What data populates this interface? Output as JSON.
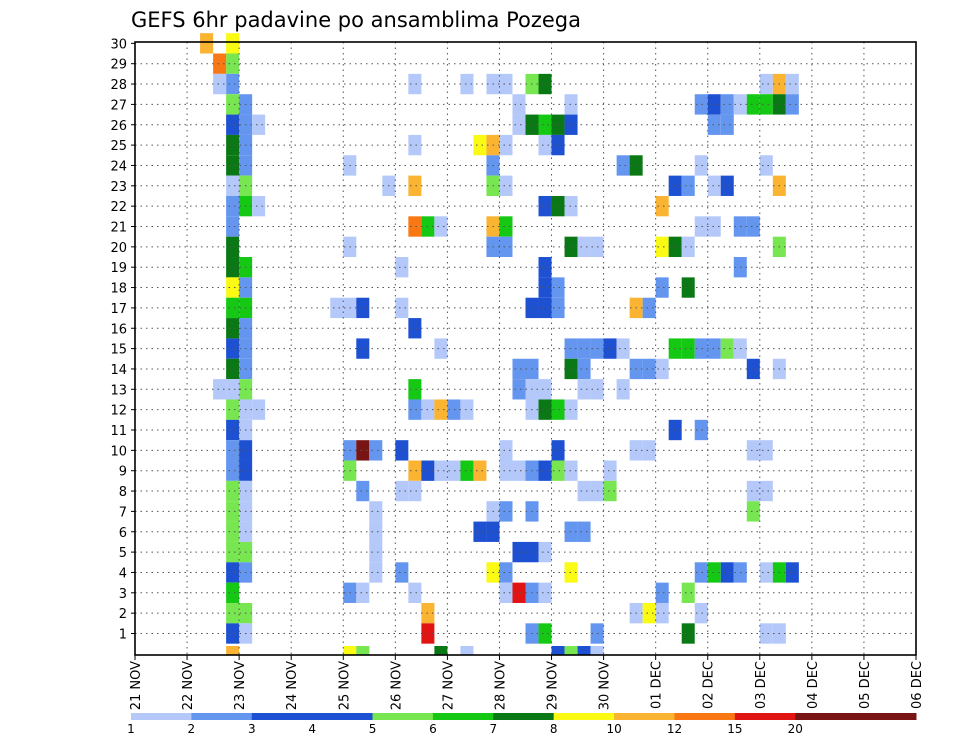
{
  "chart_data": {
    "type": "heatmap",
    "title": "GEFS 6hr padavine po ansamblima Pozega",
    "xlabel": "",
    "ylabel": "",
    "x_tick_labels": [
      "21 NOV",
      "22 NOV",
      "23 NOV",
      "24 NOV",
      "25 NOV",
      "26 NOV",
      "27 NOV",
      "28 NOV",
      "29 NOV",
      "30 NOV",
      "01 DEC",
      "02 DEC",
      "03 DEC",
      "04 DEC",
      "05 DEC",
      "06 DEC"
    ],
    "y_tick_labels": [
      "1",
      "2",
      "3",
      "4",
      "5",
      "6",
      "7",
      "8",
      "9",
      "10",
      "11",
      "12",
      "13",
      "14",
      "15",
      "16",
      "17",
      "18",
      "19",
      "20",
      "21",
      "22",
      "23",
      "24",
      "25",
      "26",
      "27",
      "28",
      "29",
      "30"
    ],
    "x_range_days": [
      0,
      15
    ],
    "y_range_members": [
      0,
      30
    ],
    "grid": "dotted",
    "colorbar": {
      "position": "bottom",
      "labels": [
        "1",
        "2",
        "3",
        "4",
        "5",
        "6",
        "7",
        "8",
        "10",
        "12",
        "15",
        "20"
      ],
      "colors": [
        "#b4c8fa",
        "#6496f0",
        "#1e50d2",
        "#1e50d2",
        "#78e650",
        "#14c814",
        "#0a7814",
        "#fafa14",
        "#fab432",
        "#fa7814",
        "#e11414",
        "#781414",
        "#781414"
      ]
    },
    "level_colors": {
      "1": "#b4c8fa",
      "2": "#6496f0",
      "3": "#1e50d2",
      "4": "#78e650",
      "5": "#14c814",
      "6": "#0a7814",
      "7": "#fafa14",
      "8": "#fab432",
      "9": "#fa7814",
      "10": "#e11414",
      "11": "#781414"
    },
    "cells": [
      [
        0,
        30,
        "7,7,1,1:5,8:1,31:1"
      ],
      [
        0,
        29,
        "7,4,7,2:6,9:3,21:2,25:1,27:4,28:2,29:2,30:4,32:1,43:5,44:3,45:1,48:1"
      ],
      [
        0,
        28,
        "7,2:6,1:21,1:25,1:27,1:28,1:30,4:31,6:48,1:49,8:50,1"
      ],
      [
        0,
        27,
        "7,4:8,2:29,1:33,1:43,2:44,3:45,2:46,1:47,5:48,5:49,6:50,2"
      ],
      [
        0,
        26,
        "7,3:8,2:9,1:29,1:30,6:31,5:32,6:33,3:44,2:45,2"
      ],
      [
        0,
        25,
        "7,6:8,2:21,1:26,7:27,8:28,1:31,1:32,3"
      ],
      [
        0,
        24,
        "7,6:8,2:16,1:27,2:37,2:38,6:43,1:48,1"
      ],
      [
        0,
        23,
        "7,1:8,4:19,1:21,8:27,4:28,1:41,3:42,2:44,1:45,3:49,8"
      ],
      [
        0,
        22,
        "7,2:8,5:9,1:31,3:32,6:33,1:40,8"
      ],
      [
        0,
        21,
        "7,2:21,9:22,5:23,1:27,8:28,5:43,1:44,1:46,2:47,2"
      ],
      [
        0,
        20,
        "7,6:16,1:27,2:28,2:33,6:34,1:35,1:40,7:41,6:42,1:49,4"
      ],
      [
        0,
        19,
        "7,6:8,5:20,1:31,3:46,2"
      ],
      [
        0,
        18,
        "7,7:8,2:31,3:32,2:40,2:42,6"
      ],
      [
        0,
        17,
        "7,5:8,5:15,1:16,1:17,3:20,1:30,3:31,3:32,2:38,8:39,2"
      ],
      [
        0,
        16,
        "7,6:8,2:21,3"
      ],
      [
        0,
        15,
        "7,3:8,2:17,3:23,1:33,2:34,2:35,2:36,3:37,1:41,5:42,5:43,2:44,2:45,4:46,1"
      ],
      [
        0,
        14,
        "7,6:8,2:29,2:30,2:33,6:34,2:38,2:39,2:40,1:47,3:49,1"
      ],
      [
        0,
        13,
        "6,1:7,1:8,4:21,5:29,2:30,1:31,1:34,1:35,1:37,1"
      ],
      [
        0,
        12,
        "7,4:8,1:9,1:21,2:22,1:23,8:24,2:25,1:30,1:31,6:32,5:33,1"
      ],
      [
        0,
        11,
        "7,3:8,1:41,3:43,2"
      ],
      [
        0,
        10,
        "7,2:8,3:16,2:17,11:18,2:20,3:28,1:32,3:38,1:39,1:47,1:48,1"
      ],
      [
        0,
        9,
        "7,2:8,3:16,4:21,8:22,3:23,1:24,1:25,5:26,8:28,1:29,1:30,2:31,3:32,4:33,1:36,1"
      ],
      [
        0,
        8,
        "7,4:8,1:17,2:20,1:21,1:34,1:35,1:36,4:47,1:48,1"
      ],
      [
        0,
        7,
        "7,4:8,1:18,1:27,1:28,2:30,2:47,4"
      ],
      [
        0,
        6,
        "7,4:8,1:18,1:26,3:27,3:33,2:34,2"
      ],
      [
        0,
        5,
        "7,4:8,4:18,1:29,3:30,3:31,1"
      ],
      [
        0,
        4,
        "7,3:8,2:18,1:20,2:27,7:28,2:33,7:43,2:44,5:45,3:46,2:48,1:49,5:50,3"
      ],
      [
        0,
        3,
        "7,5:16,2:17,1:21,1:28,1:29,10:30,2:31,1:40,2:42,4"
      ],
      [
        0,
        2,
        "7,4:8,4:22,8:38,1:39,7:40,1:43,1"
      ],
      [
        0,
        1,
        "7,3:8,1:22,10:30,2:31,5:35,2:42,6:48,1:49,1"
      ],
      [
        0,
        0,
        "7,8:16,7:17,4:23,6:25,1:32,3:33,4:34,3:35,1"
      ]
    ]
  }
}
